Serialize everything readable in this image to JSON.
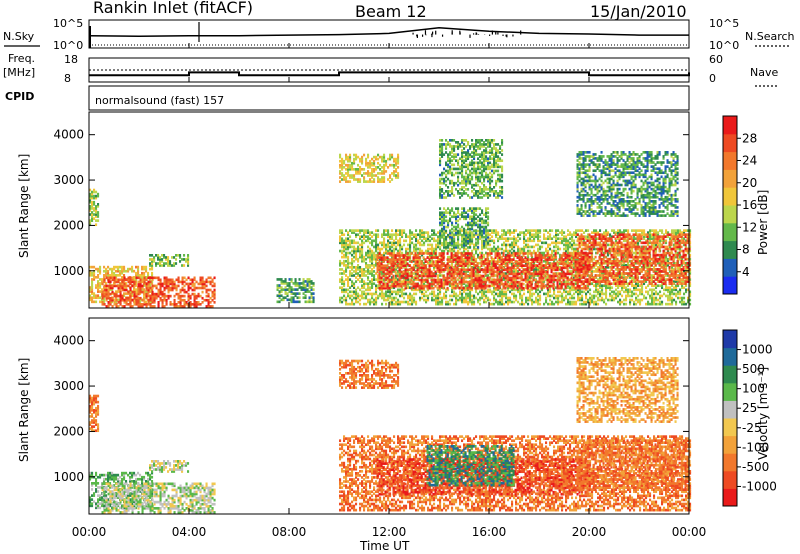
{
  "header": {
    "station": "Rankin Inlet (fitACF)",
    "beam": "Beam 12",
    "date": "15/Jan/2010"
  },
  "panel_labels": {
    "nsky": "N.Sky",
    "nsearch": "N.Search",
    "freq": "Freq.",
    "freq_unit": "[MHz]",
    "nave": "Nave",
    "cpid": "CPID",
    "cpid_value": "normalsound (fast) 157"
  },
  "chart_data": [
    {
      "type": "line",
      "name": "noise",
      "left_ticks": [
        "10^5",
        "10^0"
      ],
      "right_ticks": [
        "10^5",
        "10^0"
      ],
      "x": [
        "00:00",
        "02:00",
        "04:00",
        "06:00",
        "08:00",
        "10:00",
        "12:00",
        "14:00",
        "16:00",
        "18:00",
        "20:00",
        "22:00",
        "24:00"
      ],
      "nsky": [
        2.2,
        2.1,
        2.2,
        2.2,
        2.3,
        2.4,
        2.6,
        3.6,
        3.0,
        2.6,
        2.5,
        2.3,
        2.3
      ],
      "ylim": [
        0,
        5
      ]
    },
    {
      "type": "line",
      "name": "freq-nave",
      "left_ticks": [
        "18",
        "8"
      ],
      "right_ticks": [
        "60",
        "0"
      ],
      "x": [
        "00:00",
        "02:00",
        "04:00",
        "06:00",
        "08:00",
        "10:00",
        "12:00",
        "14:00",
        "16:00",
        "18:00",
        "20:00",
        "22:00",
        "24:00"
      ],
      "freq": [
        10.8,
        10.8,
        12.0,
        10.8,
        10.8,
        12.0,
        12.0,
        12.0,
        12.0,
        12.0,
        10.8,
        10.8,
        12.0
      ],
      "nave": [
        30,
        30,
        30,
        30,
        30,
        30,
        30,
        30,
        30,
        30,
        30,
        30,
        30
      ],
      "freq_ylim": [
        8,
        18
      ],
      "nave_ylim": [
        0,
        60
      ]
    },
    {
      "type": "heatmap",
      "name": "power",
      "ylabel": "Slant Range [km]",
      "yticks": [
        1000,
        2000,
        3000,
        4000
      ],
      "ylim": [
        180,
        4500
      ],
      "xlim_hours": [
        0,
        24
      ],
      "colorbar": {
        "label": "Power [dB]",
        "ticks": [
          "4",
          "8",
          "12",
          "16",
          "20",
          "24",
          "28"
        ],
        "min": 0,
        "max": 32,
        "colors": [
          "#1a2cf0",
          "#1f5fb8",
          "#2f8a4f",
          "#63b84a",
          "#bcd64c",
          "#f0c63a",
          "#f2a23a",
          "#f2782c",
          "#ee4a22",
          "#ea1a1a"
        ]
      },
      "regions": [
        {
          "t": [
            0.0,
            0.4
          ],
          "r": [
            2000,
            2800
          ],
          "v": 14
        },
        {
          "t": [
            0.0,
            2.5
          ],
          "r": [
            300,
            1100
          ],
          "v": 18
        },
        {
          "t": [
            0.5,
            5.0
          ],
          "r": [
            200,
            850
          ],
          "v": 26
        },
        {
          "t": [
            2.4,
            4.0
          ],
          "r": [
            1100,
            1350
          ],
          "v": 12
        },
        {
          "t": [
            7.5,
            9.0
          ],
          "r": [
            300,
            800
          ],
          "v": 10
        },
        {
          "t": [
            10.0,
            12.4
          ],
          "r": [
            2950,
            3550
          ],
          "v": 17
        },
        {
          "t": [
            10.0,
            24.0
          ],
          "r": [
            250,
            1900
          ],
          "v": 14
        },
        {
          "t": [
            11.5,
            20.0
          ],
          "r": [
            600,
            1400
          ],
          "v": 27
        },
        {
          "t": [
            19.5,
            24.0
          ],
          "r": [
            700,
            1800
          ],
          "v": 26
        },
        {
          "t": [
            14.0,
            16.0
          ],
          "r": [
            1500,
            2400
          ],
          "v": 10
        },
        {
          "t": [
            14.0,
            16.5
          ],
          "r": [
            2600,
            3900
          ],
          "v": 11
        },
        {
          "t": [
            19.5,
            23.5
          ],
          "r": [
            2200,
            3600
          ],
          "v": 9
        }
      ]
    },
    {
      "type": "heatmap",
      "name": "velocity",
      "ylabel": "Slant Range [km]",
      "yticks": [
        1000,
        2000,
        3000,
        4000
      ],
      "ylim": [
        180,
        4500
      ],
      "xlim_hours": [
        0,
        24
      ],
      "xticks": [
        "00:00",
        "04:00",
        "08:00",
        "12:00",
        "16:00",
        "20:00",
        "00:00"
      ],
      "xlabel": "Time UT",
      "colorbar": {
        "label": "Velocity [m s⁻¹]",
        "ticks": [
          "1000",
          "500",
          "100",
          "25",
          "-25",
          "-100",
          "-500",
          "-1000"
        ],
        "colors": [
          "#1f3aa8",
          "#1f6a9a",
          "#2f8a4f",
          "#5ab84a",
          "#c0c0c0",
          "#f2c850",
          "#f2a23a",
          "#f2782c",
          "#ee4a22",
          "#ea1a1a"
        ]
      },
      "regions": [
        {
          "t": [
            0.0,
            0.4
          ],
          "r": [
            2000,
            2800
          ],
          "c": 7
        },
        {
          "t": [
            0.0,
            2.5
          ],
          "r": [
            300,
            1100
          ],
          "c": 3
        },
        {
          "t": [
            0.5,
            5.0
          ],
          "r": [
            200,
            850
          ],
          "c": 4
        },
        {
          "t": [
            2.4,
            4.0
          ],
          "r": [
            1100,
            1350
          ],
          "c": 4
        },
        {
          "t": [
            10.0,
            12.4
          ],
          "r": [
            2950,
            3550
          ],
          "c": 7
        },
        {
          "t": [
            10.0,
            24.0
          ],
          "r": [
            250,
            1900
          ],
          "c": 7
        },
        {
          "t": [
            11.5,
            20.0
          ],
          "r": [
            600,
            1400
          ],
          "c": 8
        },
        {
          "t": [
            13.5,
            17.0
          ],
          "r": [
            800,
            1700
          ],
          "c": 2
        },
        {
          "t": [
            19.5,
            24.0
          ],
          "r": [
            700,
            1800
          ],
          "c": 7
        },
        {
          "t": [
            19.5,
            23.5
          ],
          "r": [
            2200,
            3600
          ],
          "c": 6
        }
      ]
    }
  ]
}
